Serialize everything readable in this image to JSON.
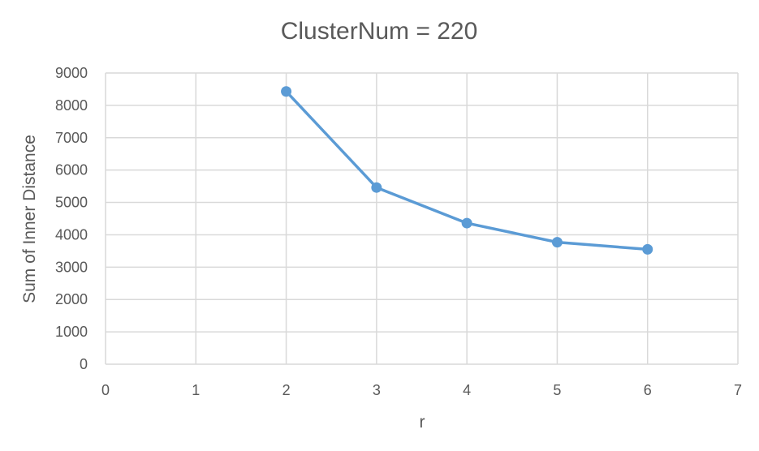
{
  "chart_data": {
    "type": "scatter",
    "title": "ClusterNum = 220",
    "xlabel": "r",
    "ylabel": "Sum of Inner Distance",
    "xlim": [
      0,
      7
    ],
    "ylim": [
      0,
      9000
    ],
    "xticks": [
      "0",
      "1",
      "2",
      "3",
      "4",
      "5",
      "6",
      "7"
    ],
    "yticks": [
      "0",
      "1000",
      "2000",
      "3000",
      "4000",
      "5000",
      "6000",
      "7000",
      "8000",
      "9000"
    ],
    "grid": true,
    "series": [
      {
        "name": "Sum of Inner Distance",
        "x": [
          2,
          3,
          4,
          5,
          6
        ],
        "y": [
          8430,
          5460,
          4360,
          3770,
          3550
        ],
        "color": "#5b9bd5"
      }
    ]
  }
}
